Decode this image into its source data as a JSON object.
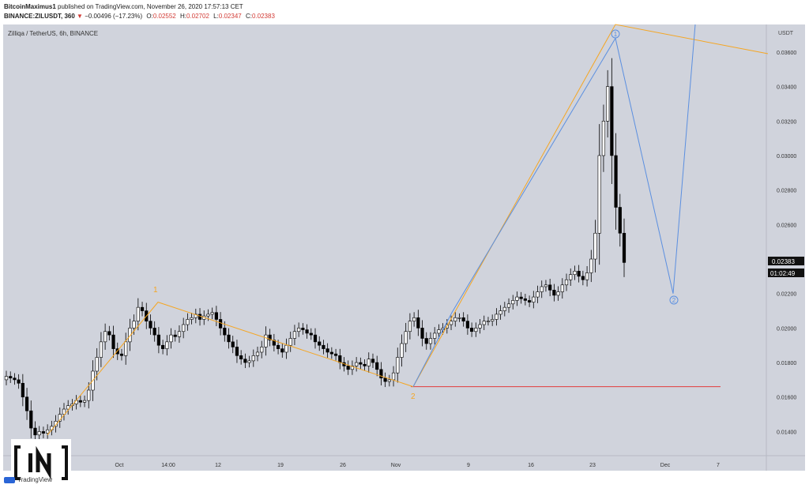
{
  "header": {
    "author": "BitcoinMaximus1",
    "published": "published on TradingView.com, November 26, 2020 17:57:13 CET",
    "symbol": "BINANCE:ZILUSDT, 360",
    "change_arrow": "▼",
    "change": "−0.00496 (−17.23%)",
    "o_label": "O:",
    "o_value": "0.02552",
    "h_label": "H:",
    "h_value": "0.02702",
    "l_label": "L:",
    "l_value": "0.02347",
    "c_label": "C:",
    "c_value": "0.02383"
  },
  "chart_title": "Zilliqa / TetherUS, 6h, BINANCE",
  "currency": "USDT",
  "last_price": "0.02383",
  "countdown": "01:02:49",
  "footer": {
    "tv_label": "TradingView",
    "brand_logo": "IN"
  },
  "colors": {
    "bg": "#d0d3dc",
    "up": "#ffffff",
    "down": "#000000",
    "orange": "#f5a623",
    "blue": "#5b8fe0",
    "red": "#e23b3b"
  },
  "chart_data": {
    "type": "candlestick",
    "title": "Zilliqa / TetherUS, 6h, BINANCE",
    "ylabel": "USDT",
    "ylim": [
      0.0126,
      0.0376
    ],
    "y_ticks": [
      "0.01400",
      "0.01600",
      "0.01800",
      "0.02000",
      "0.02200",
      "0.02400",
      "0.02600",
      "0.02800",
      "0.03000",
      "0.03200",
      "0.03400",
      "0.03600"
    ],
    "x_ticks": [
      "Oct",
      "14:00",
      "12",
      "19",
      "26",
      "Nov",
      "9",
      "16",
      "23",
      "Dec",
      "7"
    ],
    "closes": [
      0.0172,
      0.0171,
      0.017,
      0.0168,
      0.016,
      0.0152,
      0.0142,
      0.0138,
      0.014,
      0.0139,
      0.0141,
      0.0143,
      0.0146,
      0.015,
      0.0153,
      0.0155,
      0.0156,
      0.0158,
      0.0157,
      0.0158,
      0.0164,
      0.0175,
      0.0183,
      0.0192,
      0.0198,
      0.0196,
      0.0188,
      0.0185,
      0.0184,
      0.0192,
      0.02,
      0.0204,
      0.0212,
      0.021,
      0.0204,
      0.02,
      0.0196,
      0.019,
      0.0188,
      0.0192,
      0.0196,
      0.0195,
      0.0198,
      0.0202,
      0.0205,
      0.0206,
      0.0208,
      0.0205,
      0.0207,
      0.0208,
      0.0209,
      0.0205,
      0.02,
      0.0196,
      0.0192,
      0.0189,
      0.0184,
      0.0182,
      0.018,
      0.0181,
      0.0184,
      0.0186,
      0.0189,
      0.0196,
      0.0193,
      0.019,
      0.0188,
      0.0186,
      0.019,
      0.0194,
      0.0198,
      0.02,
      0.0199,
      0.0197,
      0.0196,
      0.0192,
      0.019,
      0.0188,
      0.0186,
      0.0185,
      0.0184,
      0.018,
      0.0178,
      0.0176,
      0.0178,
      0.018,
      0.0179,
      0.0178,
      0.0182,
      0.018,
      0.0176,
      0.0171,
      0.0169,
      0.017,
      0.0174,
      0.0183,
      0.0191,
      0.0198,
      0.0204,
      0.0206,
      0.02,
      0.0194,
      0.0191,
      0.0194,
      0.0197,
      0.0199,
      0.02,
      0.0202,
      0.0204,
      0.0206,
      0.0206,
      0.0204,
      0.02,
      0.0198,
      0.02,
      0.0202,
      0.0204,
      0.0204,
      0.0205,
      0.0208,
      0.021,
      0.0212,
      0.0214,
      0.0216,
      0.0218,
      0.0217,
      0.0216,
      0.0215,
      0.0218,
      0.0221,
      0.0224,
      0.0225,
      0.0222,
      0.0219,
      0.0221,
      0.0225,
      0.0228,
      0.0231,
      0.0233,
      0.023,
      0.0228,
      0.0232,
      0.024,
      0.0255,
      0.03,
      0.032,
      0.034,
      0.03,
      0.027,
      0.0255,
      0.0238
    ],
    "annotations": [
      {
        "label": "1",
        "color": "orange",
        "date": "Oct 10",
        "price": 0.0215
      },
      {
        "label": "2",
        "color": "orange",
        "date": "Nov 2",
        "price": 0.0166
      },
      {
        "label": "1",
        "color": "blue",
        "circled": true,
        "date": "Nov 24",
        "price": 0.0368
      },
      {
        "label": "2",
        "color": "blue",
        "circled": true,
        "date": "Dec 1",
        "price": 0.022
      }
    ],
    "horizontal_line": {
      "price": 0.0166,
      "color": "red"
    }
  }
}
